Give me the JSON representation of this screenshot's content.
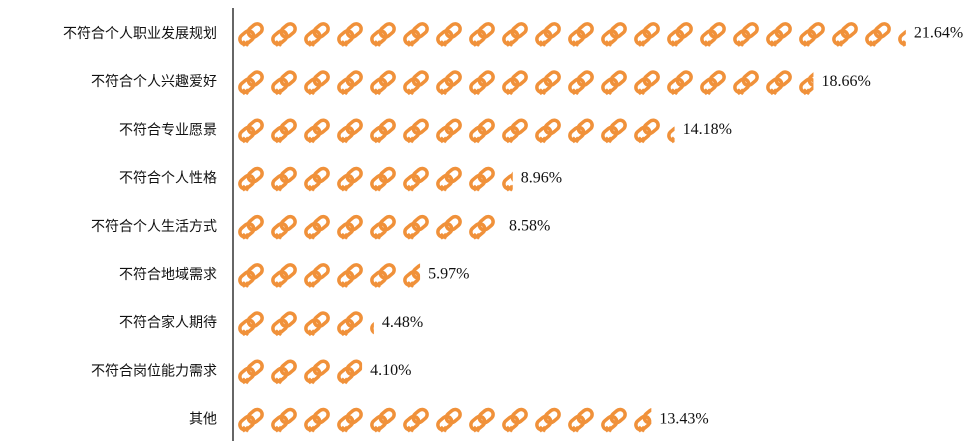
{
  "chart_data": {
    "type": "bar",
    "orientation": "horizontal",
    "categories": [
      "不符合个人职业发展规划",
      "不符合个人兴趣爱好",
      "不符合专业愿景",
      "不符合个人性格",
      "不符合个人生活方式",
      "不符合地域需求",
      "不符合家人期待",
      "不符合岗位能力需求",
      "其他"
    ],
    "values": [
      21.64,
      18.66,
      14.18,
      8.96,
      8.58,
      5.97,
      4.48,
      4.1,
      13.43
    ],
    "value_labels": [
      "21.64%",
      "18.66%",
      "14.18%",
      "8.96%",
      "8.58%",
      "5.97%",
      "4.48%",
      "4.10%",
      "13.43%"
    ],
    "color": "#f0913a"
  }
}
